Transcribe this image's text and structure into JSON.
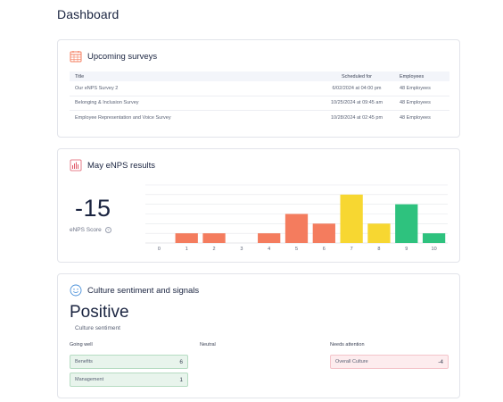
{
  "page": {
    "title": "Dashboard"
  },
  "surveys": {
    "title": "Upcoming surveys",
    "icon": "calendar-icon",
    "columns": [
      "Title",
      "Scheduled for",
      "Employees"
    ],
    "rows": [
      {
        "title": "Our eNPS Survey 2",
        "scheduled": "6/02/2024 at 04:00 pm",
        "employees": "48 Employees"
      },
      {
        "title": "Belonging & Inclusion Survey",
        "scheduled": "10/25/2024 at 09:45 am",
        "employees": "48 Employees"
      },
      {
        "title": "Employee Representation and Voice Survey",
        "scheduled": "10/28/2024 at 02:45 pm",
        "employees": "48 Employees"
      }
    ]
  },
  "enps": {
    "title": "May eNPS results",
    "icon": "bar-chart-icon",
    "score": "-15",
    "score_label": "eNPS Score",
    "info_glyph": "?"
  },
  "chart_data": {
    "type": "bar",
    "categories": [
      "0",
      "1",
      "2",
      "3",
      "4",
      "5",
      "6",
      "7",
      "8",
      "9",
      "10"
    ],
    "values": [
      0,
      1,
      1,
      0,
      1,
      3,
      2,
      5,
      2,
      4,
      1
    ],
    "ylim": [
      0,
      6
    ],
    "grid": true,
    "colors": [
      "#f47c5e",
      "#f47c5e",
      "#f47c5e",
      "#f47c5e",
      "#f47c5e",
      "#f47c5e",
      "#f47c5e",
      "#f7d731",
      "#f7d731",
      "#2ec27e",
      "#2ec27e"
    ]
  },
  "culture": {
    "title": "Culture sentiment and signals",
    "icon": "smiley-icon",
    "sentiment": "Positive",
    "sentiment_label": "Culture sentiment",
    "columns": {
      "going_well": "Going well",
      "neutral": "Neutral",
      "needs_attention": "Needs attention"
    },
    "going_well": [
      {
        "label": "Benefits",
        "value": "6"
      },
      {
        "label": "Management",
        "value": "1"
      }
    ],
    "needs_attention": [
      {
        "label": "Overall Culture",
        "value": "-4"
      }
    ]
  },
  "colors": {
    "accent_orange": "#f47c5e",
    "accent_red": "#e05a6a",
    "accent_blue": "#4a90d9",
    "good_bg": "#e8f4ec",
    "bad_bg": "#fdecee"
  }
}
